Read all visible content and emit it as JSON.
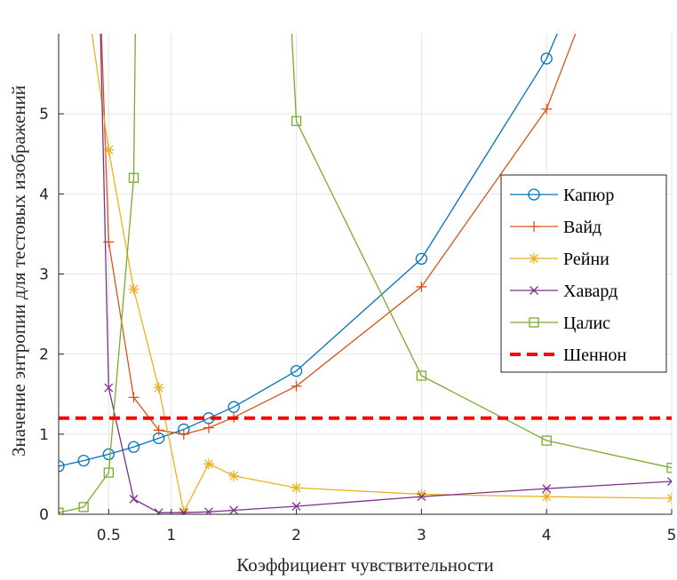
{
  "chart_data": {
    "type": "line",
    "xlabel": "Коэффициент чувствительности",
    "ylabel": "Значение энтропии для тестовых изображений",
    "xlim": [
      0.1,
      5
    ],
    "ylim": [
      0,
      6
    ],
    "xticks": [
      0.5,
      1,
      2,
      3,
      4,
      5
    ],
    "xtick_labels": [
      "0.5",
      "1",
      "2",
      "3",
      "4",
      "5"
    ],
    "yticks": [
      0,
      1,
      2,
      3,
      4,
      5
    ],
    "ytick_labels": [
      "0",
      "1",
      "2",
      "3",
      "4",
      "5"
    ],
    "grid": true,
    "legend_position": "right",
    "series": [
      {
        "name": "Капюр",
        "color": "#0072BD",
        "marker": "circle",
        "dash": "solid",
        "x": [
          0.1,
          0.3,
          0.5,
          0.7,
          0.9,
          1.1,
          1.3,
          1.5,
          2,
          3,
          4,
          4.5
        ],
        "y": [
          0.6,
          0.67,
          0.75,
          0.84,
          0.95,
          1.06,
          1.2,
          1.34,
          1.79,
          3.19,
          5.69,
          7.5
        ],
        "marked": [
          true,
          true,
          true,
          true,
          true,
          true,
          true,
          true,
          true,
          true,
          true,
          false
        ]
      },
      {
        "name": "Вайд",
        "color": "#D95319",
        "marker": "plus",
        "dash": "solid",
        "x": [
          0.42,
          0.5,
          0.7,
          0.9,
          1.1,
          1.3,
          1.5,
          2,
          3,
          4,
          4.6
        ],
        "y": [
          7.0,
          3.4,
          1.46,
          1.05,
          1.0,
          1.08,
          1.21,
          1.6,
          2.84,
          5.06,
          7.5
        ],
        "marked": [
          false,
          true,
          true,
          true,
          true,
          true,
          true,
          true,
          true,
          true,
          false
        ]
      },
      {
        "name": "Рейни",
        "color": "#EDB120",
        "marker": "asterisk",
        "dash": "solid",
        "x": [
          0.2,
          0.5,
          0.7,
          0.9,
          1.1,
          1.3,
          1.5,
          2,
          3,
          4,
          5
        ],
        "y": [
          7.8,
          4.55,
          2.81,
          1.58,
          0.03,
          0.63,
          0.48,
          0.33,
          0.25,
          0.22,
          0.2
        ],
        "marked": [
          false,
          true,
          true,
          true,
          true,
          true,
          true,
          true,
          true,
          true,
          true
        ]
      },
      {
        "name": "Хавард",
        "color": "#7E2F8E",
        "marker": "x",
        "dash": "solid",
        "x": [
          0.42,
          0.5,
          0.7,
          0.9,
          1.1,
          1.3,
          1.5,
          2,
          3,
          4,
          5
        ],
        "y": [
          7.0,
          1.58,
          0.19,
          0.02,
          0.02,
          0.03,
          0.05,
          0.1,
          0.22,
          0.32,
          0.41
        ],
        "marked": [
          false,
          true,
          true,
          true,
          true,
          true,
          true,
          true,
          true,
          true,
          true
        ]
      },
      {
        "name": "Цалис",
        "color": "#77AC30",
        "marker": "square",
        "dash": "solid",
        "x": [
          0.1,
          0.3,
          0.5,
          0.7,
          0.72,
          1.93,
          2,
          3,
          4,
          5
        ],
        "y": [
          0.02,
          0.09,
          0.52,
          4.2,
          7.0,
          7.0,
          4.91,
          1.73,
          0.92,
          0.58
        ],
        "marked": [
          true,
          true,
          true,
          true,
          false,
          false,
          true,
          true,
          true,
          true
        ]
      },
      {
        "name": "Шеннон",
        "color": "#FF0000",
        "marker": "none",
        "dash": "dashed",
        "x": [
          0.1,
          5
        ],
        "y": [
          1.2,
          1.2
        ],
        "marked": [
          false,
          false
        ]
      }
    ]
  }
}
